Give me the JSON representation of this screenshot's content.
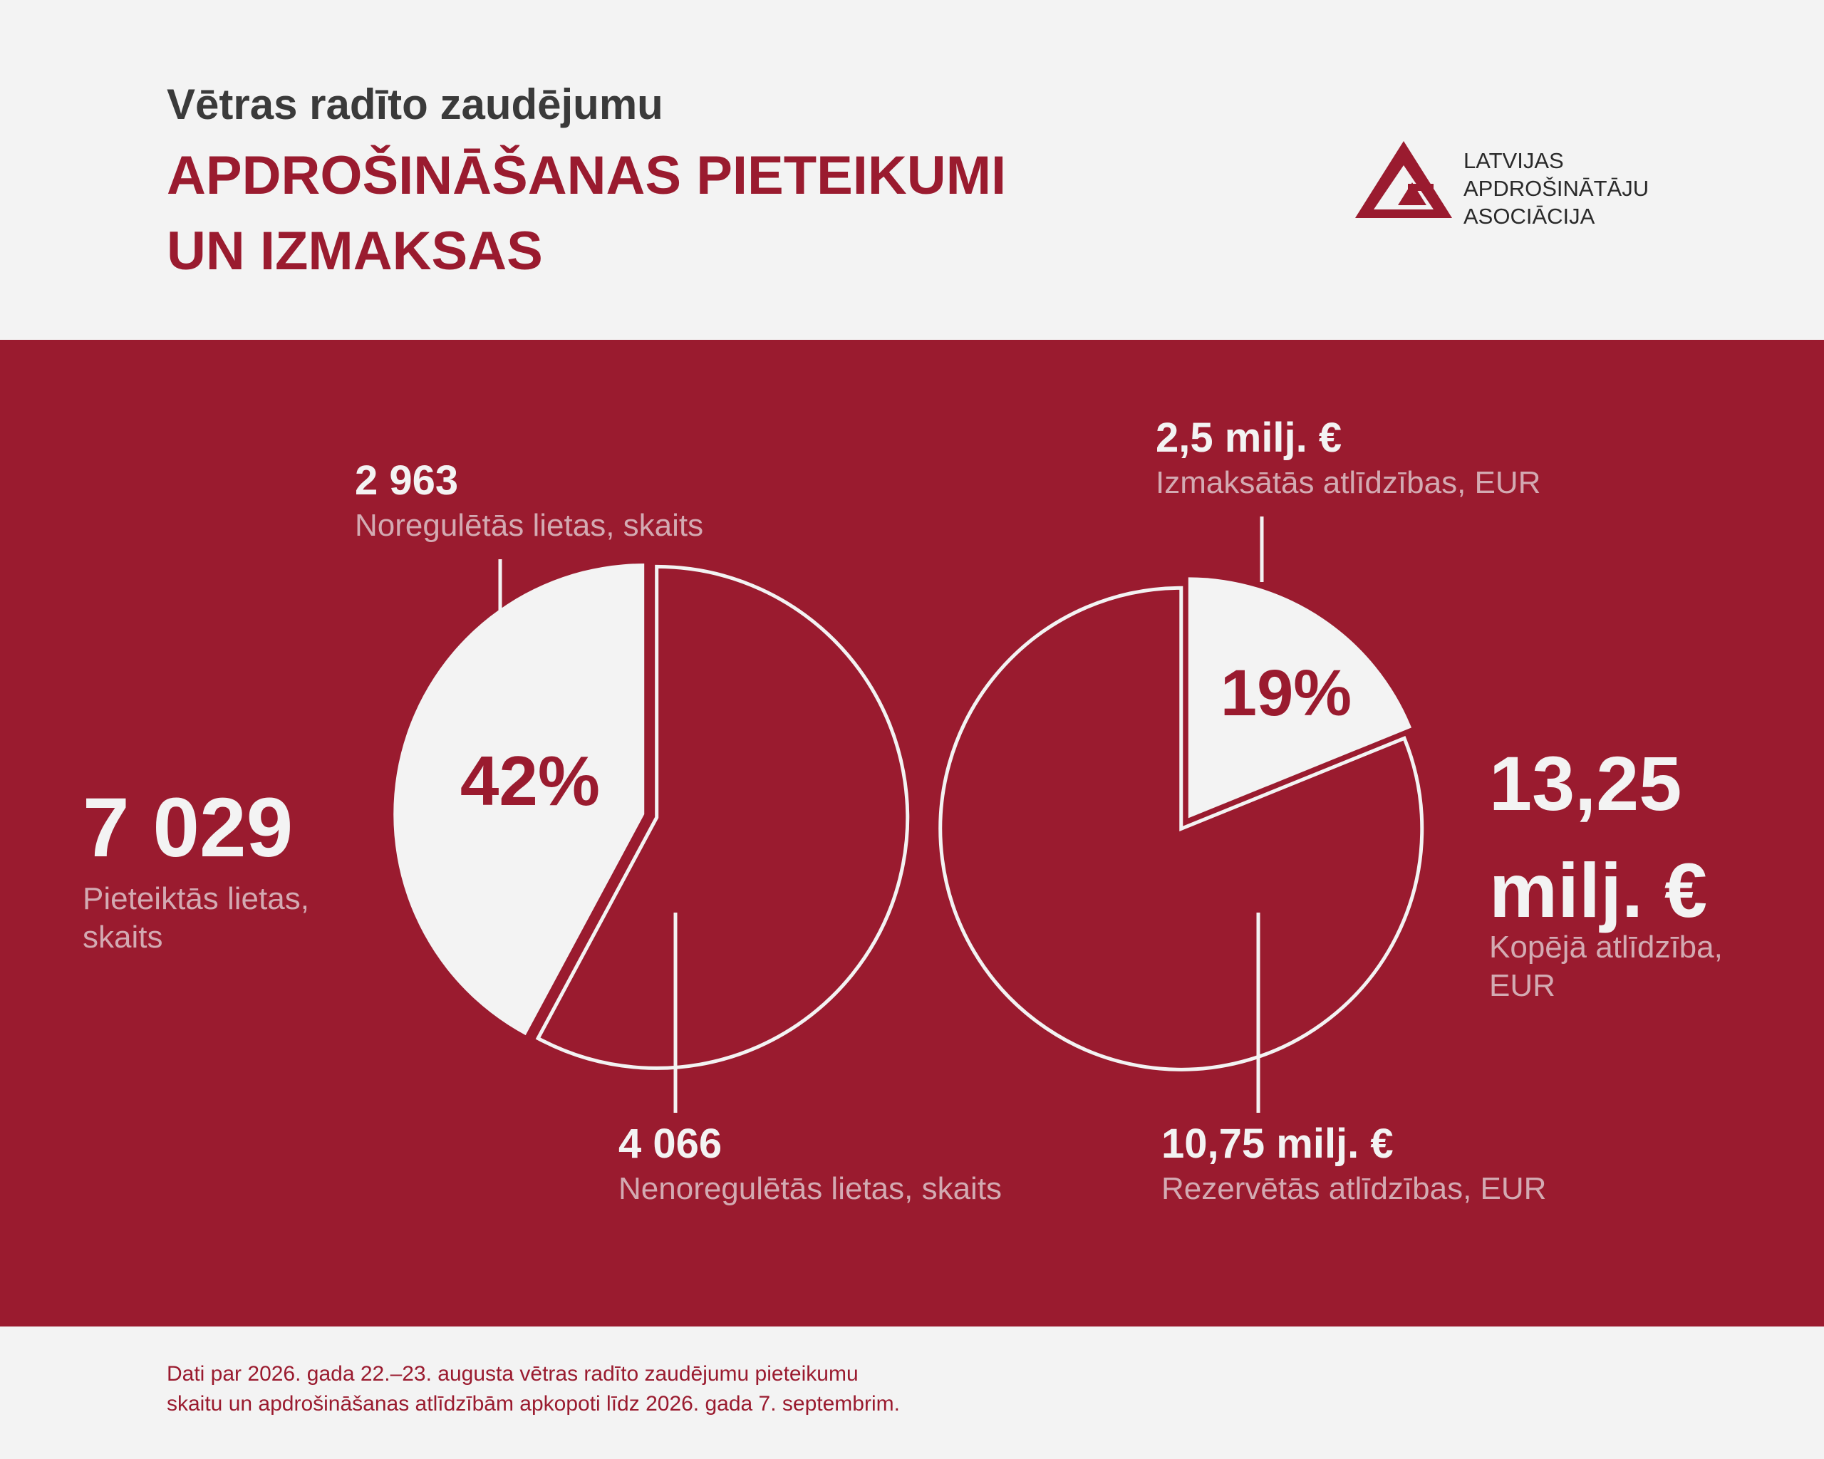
{
  "header": {
    "subtitle": "Vētras radīto zaudējumu",
    "title_line1": "APDROŠINĀŠANAS PIETEIKUMI",
    "title_line2": "UN IZMAKSAS"
  },
  "logo": {
    "line1": "LATVIJAS",
    "line2": "APDROŠINĀTĀJU",
    "line3": "ASOCIĀCIJA"
  },
  "left": {
    "total_value": "7 029",
    "total_label_line1": "Pieteiktās lietas,",
    "total_label_line2": "skaits",
    "top_value": "2 963",
    "top_label": "Noregulētās lietas, skaits",
    "bottom_value": "4 066",
    "bottom_label": "Nenoregulētās lietas, skaits",
    "percent_text": "42%"
  },
  "right": {
    "total_value_line1": "13,25",
    "total_value_line2": "milj. €",
    "total_label_line1": "Kopējā atlīdzība,",
    "total_label_line2": "EUR",
    "top_value": "2,5 milj. €",
    "top_label": "Izmaksātās atlīdzības, EUR",
    "bottom_value": "10,75 milj. €",
    "bottom_label": "Rezervētās atlīdzības, EUR",
    "percent_text": "19%"
  },
  "chart_data": [
    {
      "type": "pie",
      "categories": [
        "Noregulētās lietas, skaits",
        "Nenoregulētās lietas, skaits"
      ],
      "values": [
        2963,
        4066
      ],
      "total": 7029,
      "highlight_percent": 42
    },
    {
      "type": "pie",
      "categories": [
        "Izmaksātās atlīdzības, EUR",
        "Rezervētās atlīdzības, EUR"
      ],
      "values": [
        2.5,
        10.75
      ],
      "total": 13.25,
      "highlight_percent": 19
    }
  ],
  "footer": {
    "line1": "Dati par 2026. gada 22.–23. augusta vētras radīto zaudējumu pieteikumu",
    "line2": "skaitu un apdrošināšanas atlīdzībām apkopoti līdz 2026. gada 7. septembrim."
  },
  "colors": {
    "brand_red": "#9a1b2f",
    "light": "#f3f3f3",
    "label_pink": "#d3aab2"
  }
}
